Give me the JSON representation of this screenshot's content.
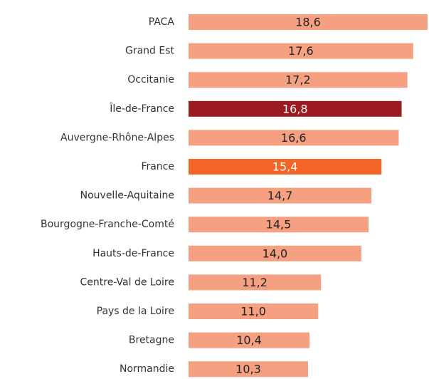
{
  "chart_data": {
    "type": "barh",
    "categories": [
      "PACA",
      "Grand Est",
      "Occitanie",
      "Île-de-France",
      "Auvergne-Rhône-Alpes",
      "France",
      "Nouvelle-Aquitaine",
      "Bourgogne-Franche-Comté",
      "Hauts-de-France",
      "Centre-Val de Loire",
      "Pays de la Loire",
      "Bretagne",
      "Normandie"
    ],
    "values": [
      18.6,
      17.6,
      17.2,
      16.8,
      16.6,
      15.4,
      14.7,
      14.5,
      14.0,
      11.2,
      11.0,
      10.4,
      10.3
    ],
    "value_labels": [
      "18,6",
      "17,6",
      "17,2",
      "16,8",
      "16,6",
      "15,4",
      "14,7",
      "14,5",
      "14,0",
      "11,2",
      "11,0",
      "10,4",
      "10,3"
    ],
    "colors": [
      "#f5a081",
      "#f5a081",
      "#f5a081",
      "#9b1b20",
      "#f5a081",
      "#f26526",
      "#f5a081",
      "#f5a081",
      "#f5a081",
      "#f5a081",
      "#f5a081",
      "#f5a081",
      "#f5a081"
    ],
    "xlim": [
      2,
      18.7
    ]
  }
}
